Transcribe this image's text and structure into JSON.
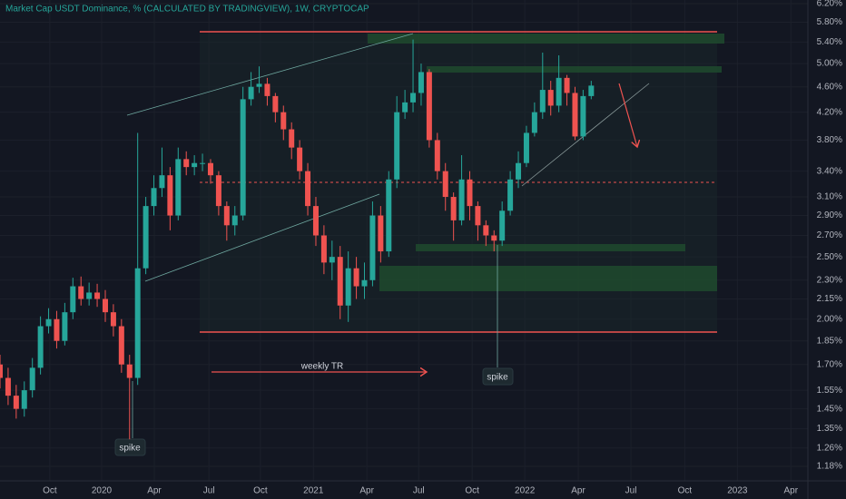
{
  "chart_data": {
    "type": "candlestick",
    "title": "Market Cap USDT Dominance, % (CALCULATED BY TRADINGVIEW), 1W, CRYPTOCAP",
    "annotations": [
      "weekly TR",
      "spike",
      "spike"
    ],
    "log_y": true,
    "grid": true,
    "up_color": "#26a69a",
    "down_color": "#ef5350",
    "xlim": [
      0,
      199.5
    ],
    "xticks": [
      {
        "value": 12.3,
        "label": "Oct"
      },
      {
        "value": 25.1,
        "label": "2020"
      },
      {
        "value": 38.1,
        "label": "Apr"
      },
      {
        "value": 51.6,
        "label": "Jul"
      },
      {
        "value": 64.3,
        "label": "Oct"
      },
      {
        "value": 77.4,
        "label": "2021"
      },
      {
        "value": 90.6,
        "label": "Apr"
      },
      {
        "value": 103.4,
        "label": "Jul"
      },
      {
        "value": 116.6,
        "label": "Oct"
      },
      {
        "value": 129.6,
        "label": "2022"
      },
      {
        "value": 142.8,
        "label": "Apr"
      },
      {
        "value": 155.8,
        "label": "Jul"
      },
      {
        "value": 169.1,
        "label": "Oct"
      },
      {
        "value": 182.1,
        "label": "2023"
      },
      {
        "value": 195.3,
        "label": "Apr"
      }
    ],
    "ylim": [
      1.12,
      6.28
    ],
    "yticks": [
      {
        "value": 6.2,
        "label": "6.20%"
      },
      {
        "value": 5.8,
        "label": "5.80%"
      },
      {
        "value": 5.4,
        "label": "5.40%"
      },
      {
        "value": 5.0,
        "label": "5.00%"
      },
      {
        "value": 4.6,
        "label": "4.60%"
      },
      {
        "value": 4.2,
        "label": "4.20%"
      },
      {
        "value": 3.8,
        "label": "3.80%"
      },
      {
        "value": 3.4,
        "label": "3.40%"
      },
      {
        "value": 3.1,
        "label": "3.10%"
      },
      {
        "value": 2.9,
        "label": "2.90%"
      },
      {
        "value": 2.7,
        "label": "2.70%"
      },
      {
        "value": 2.5,
        "label": "2.50%"
      },
      {
        "value": 2.3,
        "label": "2.30%"
      },
      {
        "value": 2.15,
        "label": "2.15%"
      },
      {
        "value": 2.0,
        "label": "2.00%"
      },
      {
        "value": 1.85,
        "label": "1.85%"
      },
      {
        "value": 1.7,
        "label": "1.70%"
      },
      {
        "value": 1.55,
        "label": "1.55%"
      },
      {
        "value": 1.45,
        "label": "1.45%"
      },
      {
        "value": 1.35,
        "label": "1.35%"
      },
      {
        "value": 1.26,
        "label": "1.26%"
      },
      {
        "value": 1.18,
        "label": "1.18%"
      }
    ],
    "x": [
      0,
      2,
      4,
      6,
      8,
      10,
      12,
      14,
      16,
      18,
      20,
      22,
      24,
      26,
      28,
      30,
      32,
      34,
      36,
      38,
      40,
      42,
      44,
      46,
      48,
      50,
      52,
      54,
      56,
      58,
      60,
      62,
      64,
      66,
      68,
      70,
      72,
      74,
      76,
      78,
      80,
      82,
      84,
      86,
      88,
      90,
      92,
      94,
      96,
      98,
      100,
      102,
      104,
      106,
      108,
      110,
      112,
      114,
      116,
      118,
      120,
      122,
      124,
      126,
      128,
      130,
      132,
      134,
      136,
      138,
      140,
      142,
      144,
      146
    ],
    "open": [
      1.7,
      1.62,
      1.52,
      1.45,
      1.55,
      1.68,
      1.95,
      2.0,
      1.85,
      2.05,
      2.25,
      2.15,
      2.2,
      2.15,
      2.05,
      1.95,
      1.7,
      1.62,
      2.4,
      3.0,
      3.2,
      3.35,
      2.9,
      3.55,
      3.45,
      3.5,
      3.5,
      3.35,
      3.0,
      2.8,
      2.9,
      4.4,
      4.6,
      4.65,
      4.45,
      4.2,
      3.95,
      3.7,
      3.4,
      3.0,
      2.7,
      2.45,
      2.5,
      2.1,
      2.4,
      2.25,
      2.3,
      2.9,
      2.55,
      3.3,
      4.2,
      4.35,
      4.5,
      4.85,
      3.8,
      3.4,
      3.1,
      2.85,
      3.3,
      3.0,
      2.8,
      2.7,
      2.65,
      2.95,
      3.3,
      3.5,
      3.9,
      4.2,
      4.55,
      4.3,
      4.75,
      4.5,
      3.85,
      4.45
    ],
    "high": [
      1.76,
      1.68,
      1.58,
      1.6,
      1.74,
      2.02,
      2.08,
      2.06,
      2.12,
      2.32,
      2.33,
      2.28,
      2.27,
      2.22,
      2.11,
      2.0,
      1.76,
      3.9,
      3.1,
      3.35,
      3.7,
      3.45,
      3.7,
      3.65,
      3.6,
      3.62,
      3.55,
      3.4,
      3.05,
      3.0,
      4.6,
      4.85,
      4.95,
      4.75,
      4.5,
      4.3,
      4.05,
      3.8,
      3.5,
      3.1,
      2.8,
      2.65,
      2.6,
      2.55,
      2.5,
      2.45,
      3.05,
      3.0,
      3.4,
      4.45,
      4.55,
      5.45,
      5.0,
      4.9,
      3.9,
      3.5,
      3.15,
      3.6,
      3.4,
      3.05,
      2.85,
      2.75,
      3.05,
      3.4,
      3.65,
      4.0,
      4.35,
      5.2,
      4.7,
      5.15,
      4.8,
      4.6,
      4.55,
      4.7
    ],
    "low": [
      1.56,
      1.47,
      1.4,
      1.41,
      1.51,
      1.64,
      1.9,
      1.8,
      1.82,
      2.0,
      2.1,
      2.1,
      2.09,
      1.98,
      1.88,
      1.65,
      1.3,
      1.58,
      2.35,
      2.9,
      3.1,
      2.75,
      2.85,
      3.35,
      3.35,
      3.4,
      3.25,
      2.9,
      2.65,
      2.7,
      2.85,
      4.3,
      4.5,
      4.3,
      4.05,
      3.8,
      3.55,
      3.3,
      2.9,
      2.6,
      2.35,
      2.3,
      2.0,
      1.98,
      2.15,
      2.15,
      2.25,
      2.45,
      2.5,
      3.2,
      4.1,
      4.2,
      4.3,
      3.7,
      3.3,
      2.95,
      2.65,
      2.8,
      2.85,
      2.65,
      2.6,
      2.55,
      2.6,
      2.9,
      3.2,
      3.45,
      3.85,
      4.1,
      4.15,
      4.2,
      4.3,
      3.8,
      3.8,
      4.4
    ],
    "close": [
      1.62,
      1.52,
      1.45,
      1.55,
      1.68,
      1.95,
      2.0,
      1.85,
      2.05,
      2.25,
      2.15,
      2.2,
      2.15,
      2.05,
      1.95,
      1.7,
      1.62,
      2.4,
      3.0,
      3.2,
      3.35,
      2.9,
      3.55,
      3.45,
      3.5,
      3.5,
      3.35,
      3.0,
      2.8,
      2.9,
      4.4,
      4.6,
      4.65,
      4.45,
      4.2,
      3.95,
      3.7,
      3.4,
      3.0,
      2.7,
      2.45,
      2.5,
      2.1,
      2.4,
      2.25,
      2.3,
      2.9,
      2.55,
      3.3,
      4.2,
      4.35,
      4.5,
      4.85,
      3.8,
      3.4,
      3.1,
      2.85,
      3.3,
      3.0,
      2.8,
      2.7,
      2.65,
      2.95,
      3.3,
      3.5,
      3.9,
      4.2,
      4.55,
      4.3,
      4.75,
      4.5,
      3.85,
      4.45,
      4.62
    ]
  }
}
